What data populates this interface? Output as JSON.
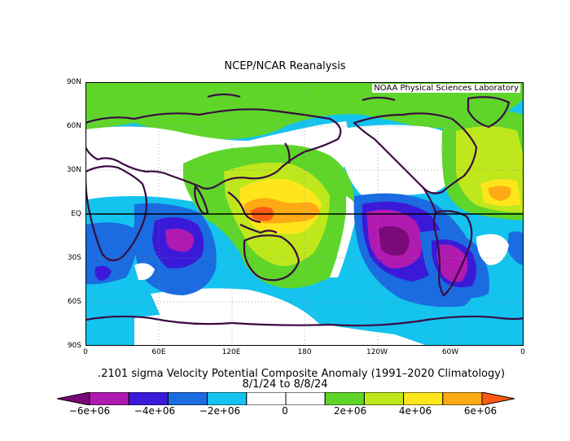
{
  "title": "NCEP/NCAR Reanalysis",
  "credit": "NOAA Physical Sciences Laboratory",
  "caption_line1": ".2101 sigma Velocity Potential  Composite Anomaly (1991–2020 Climatology)",
  "caption_line2": "8/1/24  to 8/8/24",
  "lat_labels": [
    "90N",
    "60N",
    "30N",
    "EQ",
    "30S",
    "60S",
    "90S"
  ],
  "lon_labels": [
    "0",
    "60E",
    "120E",
    "180",
    "120W",
    "60W",
    "0"
  ],
  "colorbar": {
    "colors": [
      "#7a0a7a",
      "#b01ab0",
      "#3a1ad8",
      "#1a6ce0",
      "#14c3ee",
      "#ffffff",
      "#ffffff",
      "#5fd52a",
      "#bfe81c",
      "#ffe61c",
      "#ffaa14",
      "#ff5a14"
    ],
    "labels": [
      "−6e+06",
      "−4e+06",
      "−2e+06",
      "0",
      "2e+06",
      "4e+06",
      "6e+06"
    ]
  }
}
